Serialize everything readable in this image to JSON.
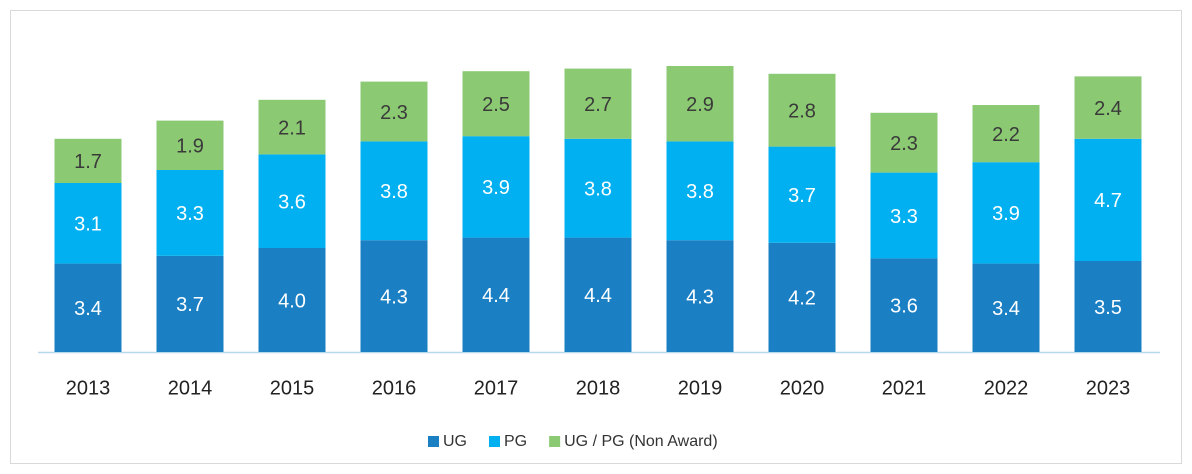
{
  "chart_data": {
    "type": "bar",
    "stacked": true,
    "categories": [
      "2013",
      "2014",
      "2015",
      "2016",
      "2017",
      "2018",
      "2019",
      "2020",
      "2021",
      "2022",
      "2023"
    ],
    "series": [
      {
        "name": "UG",
        "color": "#1b7fc4",
        "values": [
          3.4,
          3.7,
          4.0,
          4.3,
          4.4,
          4.4,
          4.3,
          4.2,
          3.6,
          3.4,
          3.5
        ],
        "value_labels": [
          "3.4",
          "3.7",
          "4.0",
          "4.3",
          "4.4",
          "4.4",
          "4.3",
          "4.2",
          "3.6",
          "3.4",
          "3.5"
        ]
      },
      {
        "name": "PG",
        "color": "#00b0f0",
        "values": [
          3.1,
          3.3,
          3.6,
          3.8,
          3.9,
          3.8,
          3.8,
          3.7,
          3.3,
          3.9,
          4.7
        ]
      },
      {
        "name": "UG / PG (Non Award)",
        "color": "#8cc973",
        "values": [
          1.7,
          1.9,
          2.1,
          2.3,
          2.5,
          2.7,
          2.9,
          2.8,
          2.3,
          2.2,
          2.4
        ]
      }
    ]
  }
}
